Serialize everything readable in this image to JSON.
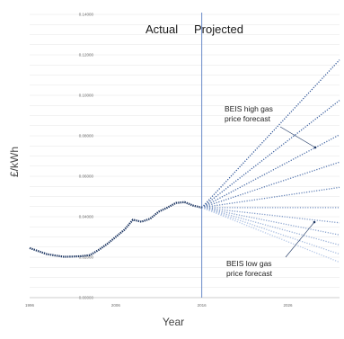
{
  "chart_data": {
    "type": "line",
    "title": "",
    "xlabel": "Year",
    "ylabel": "£/kWh",
    "xlim": [
      1996,
      2032
    ],
    "ylim": [
      0,
      0.14
    ],
    "x_ticks": [
      "1996",
      "2006",
      "2016",
      "2026"
    ],
    "y_ticks": [
      "0.00000",
      "0.02000",
      "0.04000",
      "0.06000",
      "0.08000",
      "0.10000",
      "0.12000",
      "0.14000"
    ],
    "grid": true,
    "divider_year": 2016,
    "region_labels": {
      "left": "Actual",
      "right": "Projected"
    },
    "annotations": [
      {
        "lines": [
          "BEIS high gas",
          "price forecast"
        ]
      },
      {
        "lines": [
          "BEIS low gas",
          "price forecast"
        ]
      }
    ],
    "series": [
      {
        "role": "actual",
        "color": "#1f3864",
        "x": [
          1996,
          1997,
          1998,
          1999,
          2000,
          2001,
          2002,
          2003,
          2004,
          2005,
          2006,
          2007,
          2008,
          2009,
          2010,
          2011,
          2012,
          2013,
          2014,
          2015,
          2016
        ],
        "y": [
          0.0245,
          0.023,
          0.0215,
          0.0208,
          0.0202,
          0.0203,
          0.0205,
          0.021,
          0.0235,
          0.0265,
          0.03,
          0.0335,
          0.0385,
          0.0375,
          0.039,
          0.0425,
          0.0445,
          0.0468,
          0.0472,
          0.0455,
          0.0445
        ]
      },
      {
        "role": "projected",
        "x": [
          2016,
          2032
        ],
        "y": [
          0.0445,
          0.1175
        ]
      },
      {
        "role": "projected",
        "x": [
          2016,
          2032
        ],
        "y": [
          0.0445,
          0.0975
        ]
      },
      {
        "role": "projected",
        "x": [
          2016,
          2032
        ],
        "y": [
          0.0445,
          0.0805
        ]
      },
      {
        "role": "projected",
        "x": [
          2016,
          2032
        ],
        "y": [
          0.0445,
          0.067
        ]
      },
      {
        "role": "projected",
        "x": [
          2016,
          2032
        ],
        "y": [
          0.0445,
          0.0545
        ]
      },
      {
        "role": "projected",
        "x": [
          2016,
          2032
        ],
        "y": [
          0.0445,
          0.0445
        ]
      },
      {
        "role": "projected",
        "x": [
          2016,
          2032
        ],
        "y": [
          0.0445,
          0.037
        ]
      },
      {
        "role": "projected",
        "x": [
          2016,
          2032
        ],
        "y": [
          0.0445,
          0.031
        ]
      },
      {
        "role": "projected",
        "x": [
          2016,
          2032
        ],
        "y": [
          0.0445,
          0.026
        ]
      },
      {
        "role": "projected",
        "x": [
          2016,
          2032
        ],
        "y": [
          0.0445,
          0.0215
        ]
      },
      {
        "role": "projected",
        "x": [
          2016,
          2032
        ],
        "y": [
          0.0445,
          0.0175
        ]
      }
    ],
    "colors": {
      "projected_high": "#2f5597",
      "projected_low": "#b4c7e7",
      "divider": "#5b7fc4",
      "grid": "#e6e6e6"
    }
  }
}
